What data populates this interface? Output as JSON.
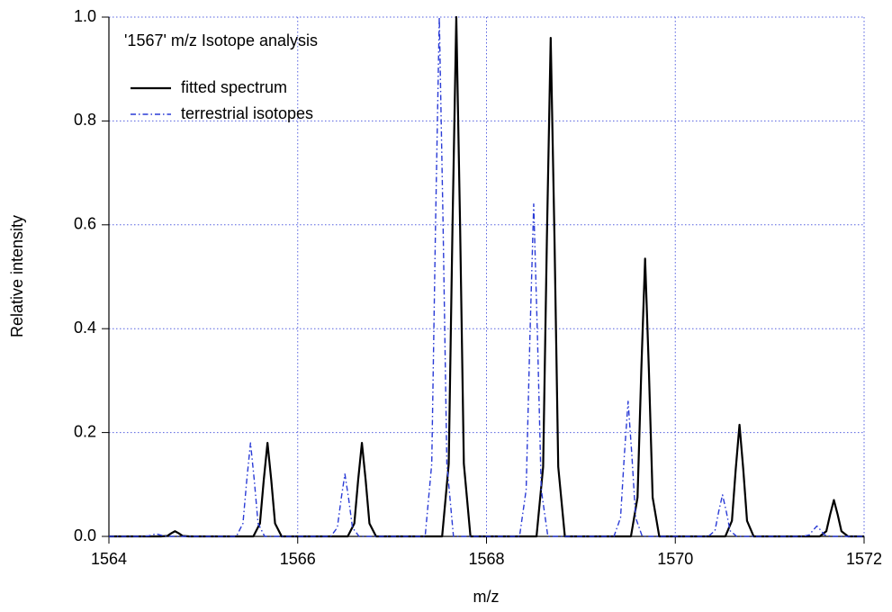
{
  "chart_data": {
    "type": "line",
    "annotation": "'1567' m/z  Isotope analysis",
    "xlabel": "m/z",
    "ylabel": "Relative intensity",
    "xlim": [
      1564,
      1572
    ],
    "xticks": [
      1564,
      1566,
      1568,
      1570,
      1572
    ],
    "ylim": [
      0,
      1
    ],
    "yticks": [
      {
        "value": 0,
        "label": "0.0"
      },
      0.2,
      0.4,
      0.6,
      0.8,
      {
        "value": 1,
        "label": "1.0"
      }
    ],
    "grid": true,
    "legend": "upper left",
    "series": [
      {
        "name": "fitted spectrum",
        "color": "#000000",
        "dash": "solid",
        "x": [
          1564,
          1564.55,
          1564.62,
          1564.66,
          1564.7,
          1564.74,
          1564.78,
          1564.85,
          1565.53,
          1565.6,
          1565.64,
          1565.68,
          1565.72,
          1565.76,
          1565.83,
          1566.53,
          1566.6,
          1566.64,
          1566.68,
          1566.72,
          1566.76,
          1566.83,
          1567.53,
          1567.6,
          1567.64,
          1567.68,
          1567.72,
          1567.76,
          1567.83,
          1568.53,
          1568.6,
          1568.64,
          1568.68,
          1568.72,
          1568.76,
          1568.83,
          1569.53,
          1569.6,
          1569.64,
          1569.68,
          1569.72,
          1569.76,
          1569.83,
          1570.53,
          1570.6,
          1570.64,
          1570.68,
          1570.72,
          1570.76,
          1570.83,
          1571.53,
          1571.6,
          1571.64,
          1571.68,
          1571.72,
          1571.76,
          1571.83,
          1572
        ],
        "values": [
          0,
          0,
          0.001,
          0.006,
          0.01,
          0.006,
          0.001,
          0,
          0,
          0.025,
          0.108,
          0.18,
          0.108,
          0.025,
          0,
          0,
          0.025,
          0.108,
          0.18,
          0.108,
          0.025,
          0,
          0,
          0.14,
          0.6,
          1.0,
          0.6,
          0.14,
          0,
          0,
          0.134,
          0.576,
          0.96,
          0.576,
          0.134,
          0,
          0,
          0.075,
          0.321,
          0.535,
          0.321,
          0.075,
          0,
          0,
          0.03,
          0.129,
          0.215,
          0.129,
          0.03,
          0,
          0,
          0.01,
          0.042,
          0.07,
          0.042,
          0.01,
          0,
          0
        ]
      },
      {
        "name": "terrestrial isotopes",
        "color": "#2a3bd6",
        "dash": "dashdot",
        "x": [
          1564,
          1564.35,
          1564.42,
          1564.46,
          1564.5,
          1564.54,
          1564.58,
          1564.65,
          1565.35,
          1565.42,
          1565.46,
          1565.5,
          1565.54,
          1565.58,
          1565.65,
          1566.35,
          1566.42,
          1566.46,
          1566.5,
          1566.54,
          1566.58,
          1566.65,
          1567.35,
          1567.42,
          1567.46,
          1567.5,
          1567.54,
          1567.58,
          1567.65,
          1568.35,
          1568.42,
          1568.46,
          1568.5,
          1568.54,
          1568.58,
          1568.65,
          1569.35,
          1569.42,
          1569.46,
          1569.5,
          1569.54,
          1569.58,
          1569.65,
          1570.35,
          1570.42,
          1570.46,
          1570.5,
          1570.54,
          1570.58,
          1570.65,
          1571.35,
          1571.42,
          1571.46,
          1571.5,
          1571.54,
          1571.58,
          1571.65,
          1572
        ],
        "values": [
          0,
          0,
          0.001,
          0.003,
          0.005,
          0.003,
          0.001,
          0,
          0,
          0.025,
          0.108,
          0.18,
          0.108,
          0.025,
          0,
          0,
          0.017,
          0.072,
          0.12,
          0.072,
          0.017,
          0,
          0,
          0.14,
          0.6,
          1.0,
          0.6,
          0.14,
          0,
          0,
          0.09,
          0.384,
          0.64,
          0.384,
          0.09,
          0,
          0,
          0.036,
          0.156,
          0.26,
          0.156,
          0.036,
          0,
          0,
          0.011,
          0.048,
          0.08,
          0.048,
          0.011,
          0,
          0,
          0.003,
          0.012,
          0.02,
          0.012,
          0.003,
          0,
          0
        ]
      }
    ]
  }
}
